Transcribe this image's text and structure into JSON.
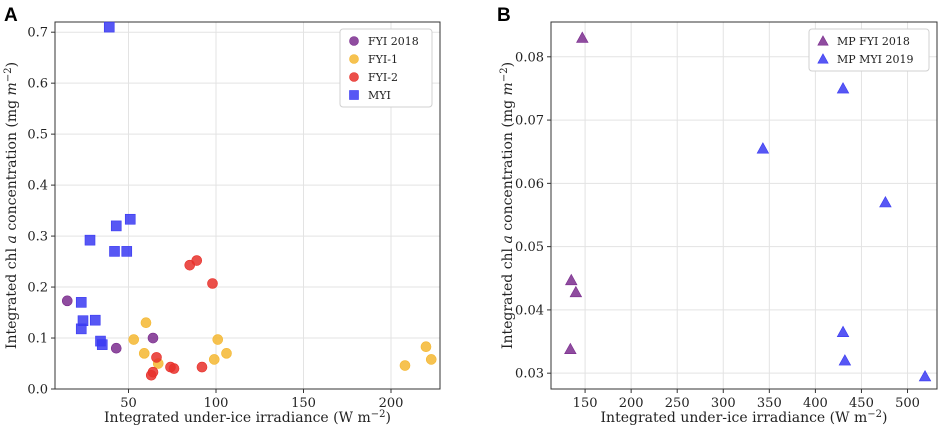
{
  "chart_data": [
    {
      "panel_label": "A",
      "type": "scatter",
      "xlabel": "Integrated under-ice irradiance (W m",
      "xlabel_sup": "−2",
      "xlabel_end": ")",
      "ylabel_pre": "Integrated chl ",
      "ylabel_it": "a",
      "ylabel_mid": " concentration (mg ",
      "ylabel_unit": "m",
      "ylabel_sup": "−2",
      "ylabel_end": ")",
      "xlim": [
        8,
        228
      ],
      "ylim": [
        0,
        0.72
      ],
      "xticks": [
        50,
        100,
        150,
        200
      ],
      "yticks": [
        0.0,
        0.1,
        0.2,
        0.3,
        0.4,
        0.5,
        0.6,
        0.7
      ],
      "ytick_decimals": 1,
      "grid": true,
      "legend_position": "top-right",
      "series": [
        {
          "name": "FYI 2018",
          "marker": "circle",
          "color": "#7b2d8e",
          "points": [
            [
              15,
              0.173
            ],
            [
              43,
              0.08
            ],
            [
              64,
              0.1
            ]
          ]
        },
        {
          "name": "FYI-1",
          "marker": "circle",
          "color": "#f4b731",
          "points": [
            [
              53,
              0.097
            ],
            [
              59,
              0.07
            ],
            [
              60,
              0.13
            ],
            [
              67,
              0.05
            ],
            [
              99,
              0.058
            ],
            [
              101,
              0.097
            ],
            [
              106,
              0.07
            ],
            [
              208,
              0.046
            ],
            [
              220,
              0.083
            ],
            [
              223,
              0.058
            ]
          ]
        },
        {
          "name": "FYI-2",
          "marker": "circle",
          "color": "#e8302a",
          "points": [
            [
              63,
              0.027
            ],
            [
              64,
              0.033
            ],
            [
              66,
              0.062
            ],
            [
              74,
              0.043
            ],
            [
              76,
              0.04
            ],
            [
              85,
              0.243
            ],
            [
              89,
              0.252
            ],
            [
              92,
              0.043
            ],
            [
              98,
              0.207
            ]
          ]
        },
        {
          "name": "MYI",
          "marker": "square",
          "color": "#3a3af2",
          "points": [
            [
              39,
              0.71
            ],
            [
              51,
              0.333
            ],
            [
              43,
              0.32
            ],
            [
              28,
              0.292
            ],
            [
              42,
              0.27
            ],
            [
              49,
              0.27
            ],
            [
              23,
              0.17
            ],
            [
              24,
              0.134
            ],
            [
              31,
              0.135
            ],
            [
              23,
              0.118
            ],
            [
              34,
              0.094
            ],
            [
              35,
              0.087
            ]
          ]
        }
      ]
    },
    {
      "panel_label": "B",
      "type": "scatter",
      "xlabel": "Integrated under-ice irradiance (W m",
      "xlabel_sup": "−2",
      "xlabel_end": ")",
      "ylabel_pre": "Integrated chl ",
      "ylabel_it": "a",
      "ylabel_mid": " concentration (mg ",
      "ylabel_unit": "m",
      "ylabel_sup": "−2",
      "ylabel_end": ")",
      "xlim": [
        113,
        532
      ],
      "ylim": [
        0.0275,
        0.0855
      ],
      "xticks": [
        150,
        200,
        250,
        300,
        350,
        400,
        450,
        500
      ],
      "yticks": [
        0.03,
        0.04,
        0.05,
        0.06,
        0.07,
        0.08
      ],
      "ytick_decimals": 2,
      "grid": true,
      "legend_position": "top-right",
      "series": [
        {
          "name": "MP FYI 2018",
          "marker": "triangle",
          "color": "#7b2d8e",
          "points": [
            [
              147,
              0.083
            ],
            [
              135,
              0.0447
            ],
            [
              140,
              0.0428
            ],
            [
              134,
              0.0338
            ]
          ]
        },
        {
          "name": "MP MYI 2019",
          "marker": "triangle",
          "color": "#3a3af2",
          "points": [
            [
              430,
              0.075
            ],
            [
              343,
              0.0655
            ],
            [
              476,
              0.057
            ],
            [
              430,
              0.0365
            ],
            [
              432,
              0.032
            ],
            [
              519,
              0.0295
            ]
          ]
        }
      ]
    }
  ]
}
